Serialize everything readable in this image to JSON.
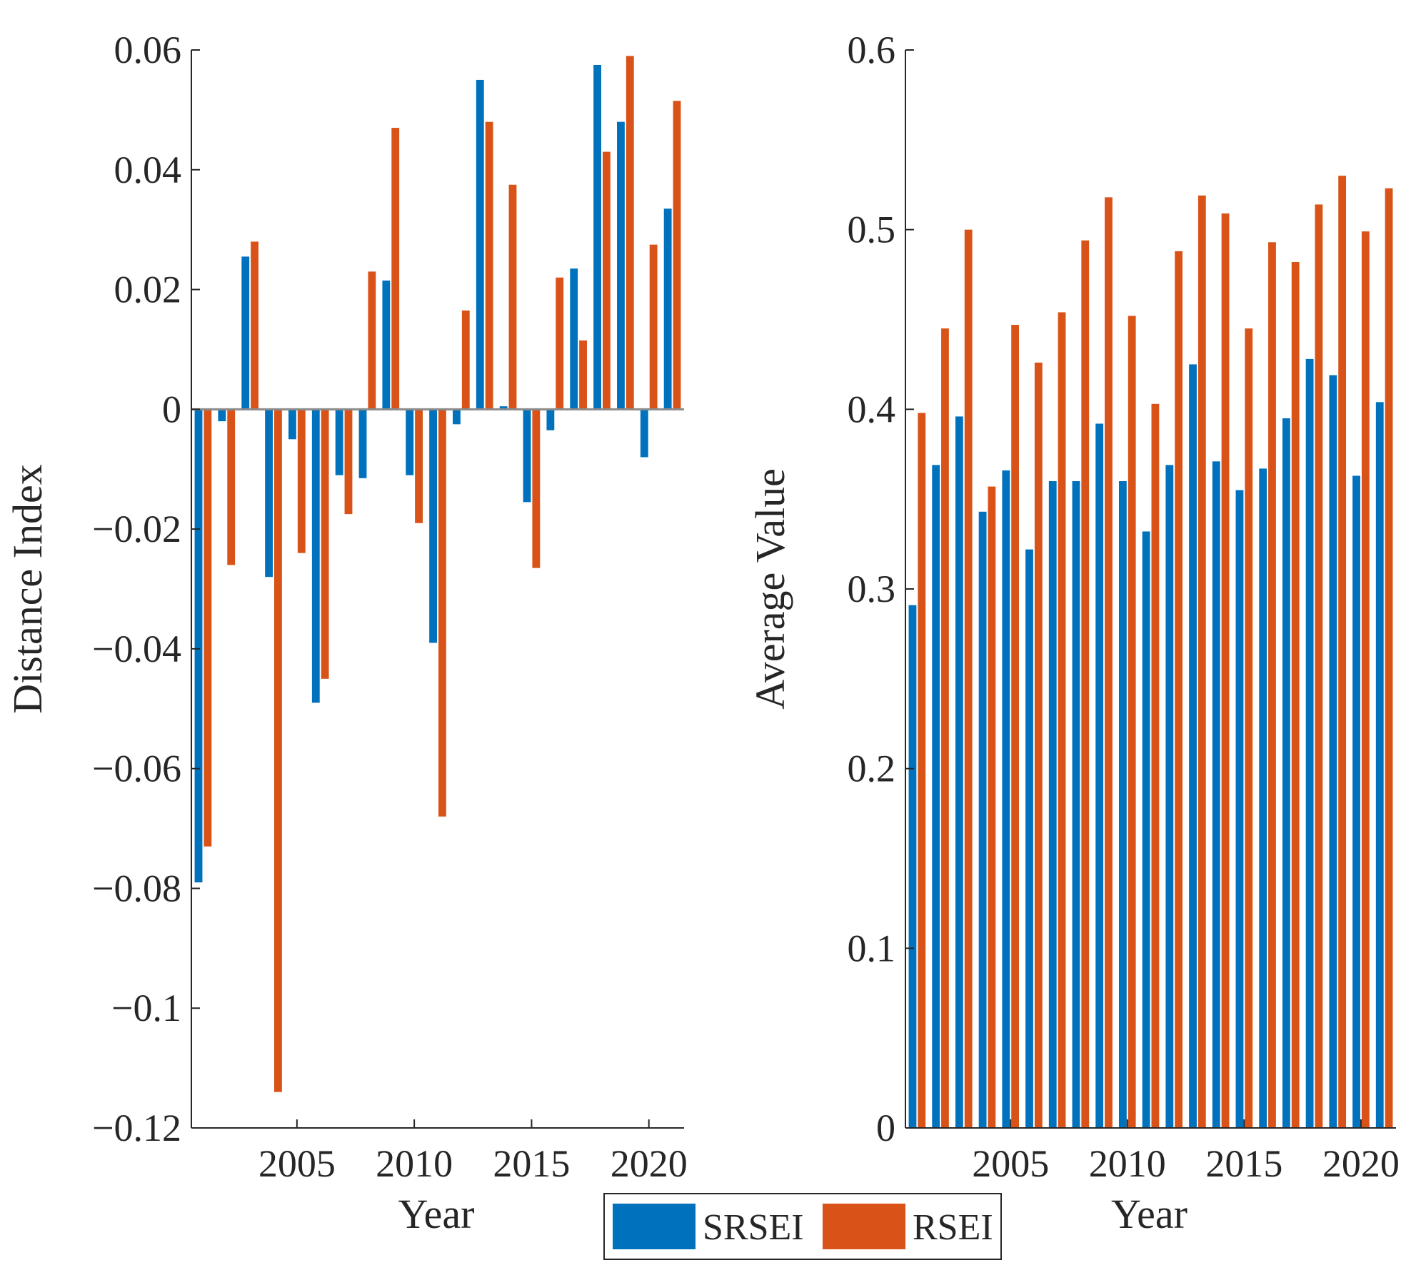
{
  "colors": {
    "SRSEI": "#0072BD",
    "RSEI": "#D95319",
    "axis": "#262626"
  },
  "legend": {
    "entries": [
      {
        "name": "SRSEI",
        "label": "SRSEI"
      },
      {
        "name": "RSEI",
        "label": "RSEI"
      }
    ],
    "placement": "bottom-center"
  },
  "chart_data": [
    {
      "type": "bar",
      "title": "",
      "xlabel": "Year",
      "ylabel": "Distance Index",
      "ylim": [
        -0.12,
        0.06
      ],
      "xlim": [
        2000.5,
        2021.5
      ],
      "yticks": [
        -0.12,
        -0.1,
        -0.08,
        -0.06,
        -0.04,
        -0.02,
        0,
        0.02,
        0.04,
        0.06
      ],
      "ytick_labels": [
        "−0.12",
        "−0.1",
        "−0.08",
        "−0.06",
        "−0.04",
        "−0.02",
        "0",
        "0.02",
        "0.04",
        "0.06"
      ],
      "xticks": [
        2005,
        2010,
        2015,
        2020
      ],
      "xtick_labels": [
        "2005",
        "2010",
        "2015",
        "2020"
      ],
      "categories": [
        2001,
        2002,
        2003,
        2004,
        2005,
        2006,
        2007,
        2008,
        2009,
        2010,
        2011,
        2012,
        2013,
        2014,
        2015,
        2016,
        2017,
        2018,
        2019,
        2020,
        2021
      ],
      "series": [
        {
          "name": "SRSEI",
          "values": [
            -0.079,
            -0.002,
            0.0255,
            -0.028,
            -0.005,
            -0.049,
            -0.011,
            -0.0115,
            0.0215,
            -0.011,
            -0.039,
            -0.0025,
            0.055,
            0.0005,
            -0.0155,
            -0.0035,
            0.0235,
            0.0575,
            0.048,
            -0.008,
            0.0335
          ]
        },
        {
          "name": "RSEI",
          "values": [
            -0.073,
            -0.026,
            0.028,
            -0.114,
            -0.024,
            -0.045,
            -0.0175,
            0.023,
            0.047,
            -0.019,
            -0.068,
            0.0165,
            0.048,
            0.0375,
            -0.0265,
            0.022,
            0.0115,
            0.043,
            0.059,
            0.0275,
            0.0515
          ]
        }
      ],
      "grid": false
    },
    {
      "type": "bar",
      "title": "",
      "xlabel": "Year",
      "ylabel": "Average Value",
      "ylim": [
        0,
        0.6
      ],
      "xlim": [
        2000.5,
        2021.5
      ],
      "yticks": [
        0,
        0.1,
        0.2,
        0.3,
        0.4,
        0.5,
        0.6
      ],
      "ytick_labels": [
        "0",
        "0.1",
        "0.2",
        "0.3",
        "0.4",
        "0.5",
        "0.6"
      ],
      "xticks": [
        2005,
        2010,
        2015,
        2020
      ],
      "xtick_labels": [
        "2005",
        "2010",
        "2015",
        "2020"
      ],
      "categories": [
        2001,
        2002,
        2003,
        2004,
        2005,
        2006,
        2007,
        2008,
        2009,
        2010,
        2011,
        2012,
        2013,
        2014,
        2015,
        2016,
        2017,
        2018,
        2019,
        2020,
        2021
      ],
      "series": [
        {
          "name": "SRSEI",
          "values": [
            0.291,
            0.369,
            0.396,
            0.343,
            0.366,
            0.322,
            0.36,
            0.36,
            0.392,
            0.36,
            0.332,
            0.369,
            0.425,
            0.371,
            0.355,
            0.367,
            0.395,
            0.428,
            0.419,
            0.363,
            0.404
          ]
        },
        {
          "name": "RSEI",
          "values": [
            0.398,
            0.445,
            0.5,
            0.357,
            0.447,
            0.426,
            0.454,
            0.494,
            0.518,
            0.452,
            0.403,
            0.488,
            0.519,
            0.509,
            0.445,
            0.493,
            0.482,
            0.514,
            0.53,
            0.499,
            0.523
          ]
        }
      ],
      "grid": false
    }
  ]
}
